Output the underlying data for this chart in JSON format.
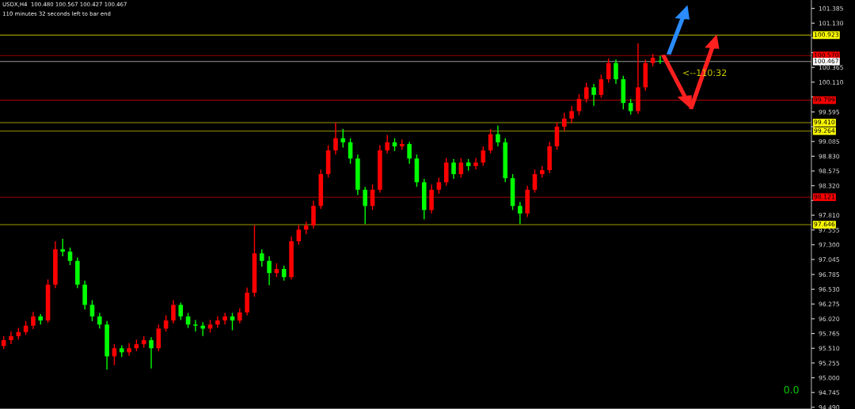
{
  "chart_data": {
    "type": "candlestick",
    "categories": [
      null,
      null,
      null,
      null,
      null,
      null,
      null,
      null,
      null,
      null,
      null,
      null,
      null,
      null,
      null,
      null,
      null,
      null,
      null,
      null,
      null,
      null,
      null,
      null,
      null,
      null,
      null,
      null,
      null,
      null,
      null,
      null,
      null,
      null,
      null,
      null,
      null,
      null,
      null,
      null,
      null,
      null,
      null,
      null,
      null,
      null,
      null,
      null,
      null,
      null,
      null,
      null,
      null,
      null,
      null,
      null,
      null,
      null,
      null,
      null,
      null,
      null,
      null,
      null,
      null,
      null,
      null,
      null,
      null,
      null,
      null,
      null,
      null,
      null,
      null,
      null,
      null,
      null,
      null,
      null,
      null,
      null,
      null,
      null,
      null,
      null,
      null,
      null,
      null,
      null,
      null,
      null,
      null,
      null,
      null,
      null,
      null,
      null,
      null,
      null,
      null,
      null,
      null,
      null,
      null,
      null,
      null,
      null,
      null,
      null
    ],
    "ohlc": [
      [
        95.55,
        95.72,
        95.5,
        95.65
      ],
      [
        95.65,
        95.8,
        95.58,
        95.72
      ],
      [
        95.72,
        95.86,
        95.66,
        95.79
      ],
      [
        95.79,
        95.98,
        95.74,
        95.9
      ],
      [
        95.9,
        96.14,
        95.84,
        96.06
      ],
      [
        96.06,
        96.1,
        95.92,
        95.99
      ],
      [
        95.99,
        96.7,
        95.95,
        96.61
      ],
      [
        96.61,
        97.36,
        96.55,
        97.22
      ],
      [
        97.22,
        97.4,
        97.1,
        97.18
      ],
      [
        97.18,
        97.25,
        96.95,
        97.02
      ],
      [
        97.02,
        97.08,
        96.55,
        96.61
      ],
      [
        96.61,
        96.68,
        96.18,
        96.26
      ],
      [
        96.26,
        96.34,
        95.98,
        96.06
      ],
      [
        96.06,
        96.12,
        95.85,
        95.92
      ],
      [
        95.92,
        95.98,
        95.14,
        95.37
      ],
      [
        95.37,
        95.58,
        95.22,
        95.51
      ],
      [
        95.51,
        95.56,
        95.36,
        95.44
      ],
      [
        95.44,
        95.6,
        95.38,
        95.51
      ],
      [
        95.51,
        95.66,
        95.46,
        95.58
      ],
      [
        95.58,
        95.72,
        95.52,
        95.65
      ],
      [
        95.65,
        95.7,
        95.16,
        95.51
      ],
      [
        95.51,
        95.92,
        95.46,
        95.85
      ],
      [
        95.85,
        96.08,
        95.8,
        95.99
      ],
      [
        95.99,
        96.34,
        95.94,
        96.26
      ],
      [
        96.26,
        96.3,
        96.0,
        96.06
      ],
      [
        96.06,
        96.12,
        95.86,
        95.92
      ],
      [
        95.92,
        96.0,
        95.8,
        95.9
      ],
      [
        95.9,
        95.96,
        95.72,
        95.85
      ],
      [
        95.85,
        96.0,
        95.78,
        95.92
      ],
      [
        95.92,
        96.06,
        95.86,
        95.99
      ],
      [
        95.99,
        96.12,
        95.92,
        96.06
      ],
      [
        96.06,
        96.12,
        95.82,
        95.99
      ],
      [
        95.99,
        96.2,
        95.94,
        96.13
      ],
      [
        96.13,
        96.56,
        96.08,
        96.47
      ],
      [
        96.47,
        97.64,
        96.4,
        97.15
      ],
      [
        97.15,
        97.22,
        96.92,
        97.02
      ],
      [
        97.02,
        97.1,
        96.6,
        96.81
      ],
      [
        96.81,
        96.98,
        96.74,
        96.88
      ],
      [
        96.88,
        96.94,
        96.68,
        96.74
      ],
      [
        96.74,
        97.44,
        96.7,
        97.36
      ],
      [
        97.36,
        97.64,
        97.3,
        97.56
      ],
      [
        97.56,
        97.7,
        97.48,
        97.63
      ],
      [
        97.63,
        98.06,
        97.58,
        97.97
      ],
      [
        97.97,
        98.6,
        97.92,
        98.52
      ],
      [
        98.52,
        99.02,
        98.46,
        98.93
      ],
      [
        98.93,
        99.41,
        98.86,
        99.14
      ],
      [
        99.14,
        99.3,
        98.98,
        99.07
      ],
      [
        99.07,
        99.14,
        98.7,
        98.79
      ],
      [
        98.79,
        98.86,
        98.16,
        98.25
      ],
      [
        98.25,
        98.3,
        97.66,
        97.97
      ],
      [
        97.97,
        98.34,
        97.9,
        98.25
      ],
      [
        98.25,
        99.02,
        98.2,
        98.93
      ],
      [
        98.93,
        99.2,
        98.88,
        99.07
      ],
      [
        99.07,
        99.14,
        98.92,
        99.0
      ],
      [
        99.0,
        99.12,
        98.94,
        99.04
      ],
      [
        99.04,
        99.08,
        98.7,
        98.79
      ],
      [
        98.79,
        98.86,
        98.3,
        98.38
      ],
      [
        98.38,
        98.44,
        97.74,
        97.9
      ],
      [
        97.9,
        98.34,
        97.84,
        98.25
      ],
      [
        98.25,
        98.46,
        98.18,
        98.38
      ],
      [
        98.38,
        98.8,
        98.32,
        98.72
      ],
      [
        98.72,
        98.78,
        98.44,
        98.52
      ],
      [
        98.52,
        98.8,
        98.46,
        98.72
      ],
      [
        98.72,
        98.78,
        98.58,
        98.66
      ],
      [
        98.66,
        98.8,
        98.6,
        98.72
      ],
      [
        98.72,
        99.0,
        98.66,
        98.93
      ],
      [
        98.93,
        99.3,
        98.88,
        99.21
      ],
      [
        99.21,
        99.36,
        99.0,
        99.07
      ],
      [
        99.07,
        99.14,
        98.38,
        98.45
      ],
      [
        98.45,
        98.52,
        97.9,
        97.97
      ],
      [
        97.97,
        98.04,
        97.66,
        97.84
      ],
      [
        97.84,
        98.32,
        97.78,
        98.25
      ],
      [
        98.25,
        98.6,
        98.2,
        98.52
      ],
      [
        98.52,
        98.66,
        98.46,
        98.59
      ],
      [
        98.59,
        99.08,
        98.54,
        99.0
      ],
      [
        99.0,
        99.42,
        98.94,
        99.34
      ],
      [
        99.34,
        99.58,
        99.26,
        99.48
      ],
      [
        99.48,
        99.7,
        99.4,
        99.61
      ],
      [
        99.61,
        99.9,
        99.54,
        99.82
      ],
      [
        99.82,
        100.1,
        99.76,
        100.02
      ],
      [
        100.02,
        100.08,
        99.7,
        99.89
      ],
      [
        99.89,
        100.24,
        99.84,
        100.16
      ],
      [
        100.16,
        100.52,
        100.1,
        100.44
      ],
      [
        100.44,
        100.5,
        100.08,
        100.16
      ],
      [
        100.16,
        100.22,
        99.64,
        99.75
      ],
      [
        99.75,
        99.82,
        99.55,
        99.61
      ],
      [
        99.61,
        100.78,
        99.56,
        100.02
      ],
      [
        100.02,
        100.5,
        99.96,
        100.44
      ],
      [
        100.44,
        100.6,
        100.38,
        100.53
      ],
      [
        100.48,
        100.567,
        100.427,
        100.467
      ],
      null,
      null,
      null,
      null,
      null,
      null,
      null,
      null,
      null,
      null,
      null,
      null,
      null,
      null,
      null,
      null,
      null,
      null,
      null,
      null
    ],
    "colors": [
      "#ff0000",
      "#ff0000",
      "#ff0000",
      "#ff0000",
      "#ff0000",
      "#00ff00",
      "#ff0000",
      "#ff0000",
      "#00ff00",
      "#00ff00",
      "#00ff00",
      "#00ff00",
      "#00ff00",
      "#00ff00",
      "#00ff00",
      "#ff0000",
      "#00ff00",
      "#ff0000",
      "#ff0000",
      "#ff0000",
      "#00ff00",
      "#ff0000",
      "#ff0000",
      "#ff0000",
      "#00ff00",
      "#00ff00",
      "#00ff00",
      "#00ff00",
      "#ff0000",
      "#ff0000",
      "#ff0000",
      "#00ff00",
      "#ff0000",
      "#ff0000",
      "#ff0000",
      "#00ff00",
      "#00ff00",
      "#ff0000",
      "#00ff00",
      "#ff0000",
      "#ff0000",
      "#ff0000",
      "#ff0000",
      "#ff0000",
      "#ff0000",
      "#ff0000",
      "#00ff00",
      "#00ff00",
      "#00ff00",
      "#00ff00",
      "#ff0000",
      "#ff0000",
      "#ff0000",
      "#00ff00",
      "#ff0000",
      "#00ff00",
      "#00ff00",
      "#00ff00",
      "#ff0000",
      "#ff0000",
      "#ff0000",
      "#00ff00",
      "#ff0000",
      "#00ff00",
      "#ff0000",
      "#ff0000",
      "#ff0000",
      "#00ff00",
      "#00ff00",
      "#00ff00",
      "#00ff00",
      "#ff0000",
      "#ff0000",
      "#ff0000",
      "#ff0000",
      "#ff0000",
      "#ff0000",
      "#ff0000",
      "#ff0000",
      "#ff0000",
      "#00ff00",
      "#ff0000",
      "#ff0000",
      "#00ff00",
      "#00ff00",
      "#00ff00",
      "#ff0000",
      "#ff0000",
      "#ff0000",
      "#00ff00",
      null,
      null,
      null,
      null,
      null,
      null,
      null,
      null,
      null,
      null,
      null,
      null,
      null,
      null,
      null,
      null,
      null,
      null,
      null,
      null
    ],
    "ylim": [
      94.46,
      101.53
    ],
    "yticks": [
      {
        "value": 101.385,
        "label": "101.385"
      },
      {
        "value": 101.13,
        "label": "101.130"
      },
      {
        "value": 100.875,
        "label": null
      },
      {
        "value": 100.62,
        "label": null
      },
      {
        "value": 100.365,
        "label": "100.365"
      },
      {
        "value": 100.11,
        "label": "100.110"
      },
      {
        "value": 99.855,
        "label": null
      },
      {
        "value": 99.595,
        "label": "99.595"
      },
      {
        "value": 99.34,
        "label": null
      },
      {
        "value": 99.085,
        "label": "99.085"
      },
      {
        "value": 98.83,
        "label": "98.830"
      },
      {
        "value": 98.575,
        "label": "98.575"
      },
      {
        "value": 98.32,
        "label": "98.320"
      },
      {
        "value": 98.065,
        "label": null
      },
      {
        "value": 97.81,
        "label": "97.810"
      },
      {
        "value": 97.555,
        "label": "97.555"
      },
      {
        "value": 97.3,
        "label": "97.300"
      },
      {
        "value": 97.045,
        "label": "97.045"
      },
      {
        "value": 96.785,
        "label": "96.785"
      },
      {
        "value": 96.53,
        "label": "96.530"
      },
      {
        "value": 96.275,
        "label": "96.275"
      },
      {
        "value": 96.02,
        "label": "96.020"
      },
      {
        "value": 95.765,
        "label": "95.765"
      },
      {
        "value": 95.51,
        "label": "95.510"
      },
      {
        "value": 95.255,
        "label": "95.255"
      },
      {
        "value": 95.0,
        "label": "95.000"
      },
      {
        "value": 94.745,
        "label": "94.745"
      },
      {
        "value": 94.49,
        "label": "94.490"
      }
    ],
    "ref_lines": [
      {
        "axis": "y",
        "value": 100.923,
        "label": "100.923",
        "color": "#ffff00"
      },
      {
        "axis": "y",
        "value": 100.57,
        "label": "100.570",
        "color": "#ff0000"
      },
      {
        "axis": "y",
        "value": 100.467,
        "label": "100.467",
        "color": "#ffffff"
      },
      {
        "axis": "y",
        "value": 99.799,
        "label": "99.799",
        "color": "#ff0000"
      },
      {
        "axis": "y",
        "value": 99.41,
        "label": "99.410",
        "color": "#ffff00"
      },
      {
        "axis": "y",
        "value": 99.264,
        "label": "99.264",
        "color": "#ffff00"
      },
      {
        "axis": "y",
        "value": 98.121,
        "label": "98.121",
        "color": "#ff0000"
      },
      {
        "axis": "y",
        "value": 97.646,
        "label": "97.646",
        "color": "#ffff00"
      }
    ],
    "annotations": [
      "USDX,H4  100.480 100.567 100.427 100.467",
      "110 minutes 32 seconds left to bar end",
      {
        "text": "<--110:32",
        "y": 100.467
      },
      "0.0"
    ],
    "tick_labels": "y",
    "legend": false,
    "grid": false
  }
}
